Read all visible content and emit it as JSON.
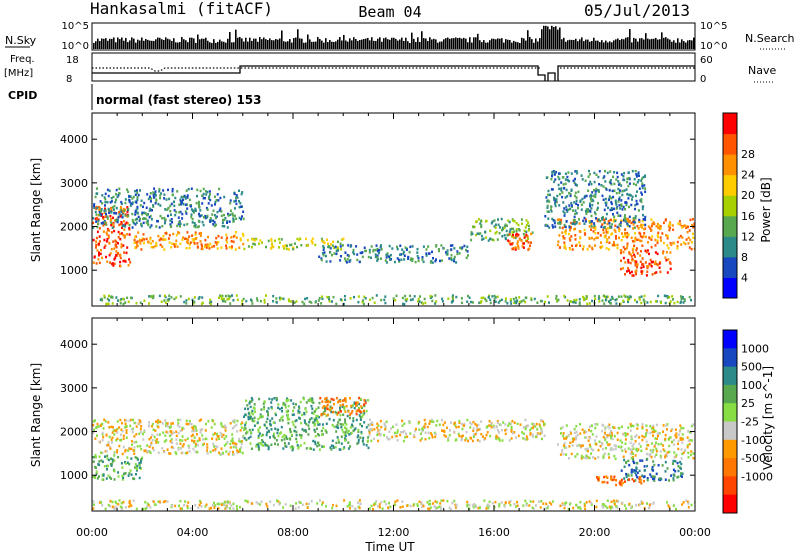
{
  "header": {
    "station": "Hankasalmi (fitACF)",
    "beam": "Beam 04",
    "date": "05/Jul/2013"
  },
  "strip_labels": {
    "nsky": "N.Sky",
    "nsky_ticks": [
      "10^5",
      "10^0"
    ],
    "nsearch": "N.Search",
    "nsearch_ticks": [
      "10^5",
      "10^0"
    ],
    "freq_line1": "Freq.",
    "freq_line2": "[MHz]",
    "freq_ticks": [
      "18",
      "8"
    ],
    "nave": "Nave",
    "nave_ticks": [
      "60",
      "0"
    ],
    "cpid": "CPID",
    "cpid_text": "normal (fast stereo) 153"
  },
  "chart_data": [
    {
      "type": "heatmap",
      "name": "power-panel",
      "xlabel": "Time UT",
      "ylabel": "Slant Range [km]",
      "xlim": [
        0,
        24
      ],
      "ylim": [
        180,
        4600
      ],
      "y_ticks": [
        "1000",
        "2000",
        "3000",
        "4000"
      ],
      "x_ticks": [
        "00:00",
        "04:00",
        "08:00",
        "12:00",
        "16:00",
        "20:00",
        "00:00"
      ],
      "colorbar": {
        "label": "Power [dB]",
        "ticks": [
          "4",
          "8",
          "12",
          "16",
          "20",
          "24",
          "28"
        ],
        "colors": [
          "#0000ff",
          "#1848c0",
          "#2c8a88",
          "#58a850",
          "#a8d000",
          "#ffcc00",
          "#ff9000",
          "#ff5500",
          "#ff0000"
        ]
      },
      "echo_bands": [
        {
          "x": [
            0.3,
            23.9
          ],
          "y": [
            250,
            450
          ],
          "level": 3
        },
        {
          "x": [
            0,
            1.5
          ],
          "y": [
            1100,
            2500
          ],
          "level": 7
        },
        {
          "x": [
            1.5,
            6
          ],
          "y": [
            1500,
            1900
          ],
          "level": 6
        },
        {
          "x": [
            6,
            10
          ],
          "y": [
            1500,
            1750
          ],
          "level": 4
        },
        {
          "x": [
            9,
            15
          ],
          "y": [
            1200,
            1600
          ],
          "level": 2
        },
        {
          "x": [
            15,
            17.5
          ],
          "y": [
            1700,
            2200
          ],
          "level": 3
        },
        {
          "x": [
            16.5,
            17.5
          ],
          "y": [
            1500,
            1900
          ],
          "level": 7
        },
        {
          "x": [
            18.5,
            24
          ],
          "y": [
            1500,
            2200
          ],
          "level": 6
        },
        {
          "x": [
            21,
            23
          ],
          "y": [
            900,
            1500
          ],
          "level": 7
        },
        {
          "x": [
            0,
            6
          ],
          "y": [
            2000,
            2900
          ],
          "level": 2
        },
        {
          "x": [
            18,
            22
          ],
          "y": [
            2000,
            3300
          ],
          "level": 2
        }
      ]
    },
    {
      "type": "heatmap",
      "name": "velocity-panel",
      "xlabel": "Time UT",
      "ylabel": "Slant Range [km]",
      "xlim": [
        0,
        24
      ],
      "ylim": [
        180,
        4600
      ],
      "y_ticks": [
        "1000",
        "2000",
        "3000",
        "4000"
      ],
      "x_ticks": [
        "00:00",
        "04:00",
        "08:00",
        "12:00",
        "16:00",
        "20:00",
        "00:00"
      ],
      "colorbar": {
        "label": "Velocity [m s^-1]",
        "ticks": [
          "1000",
          "500",
          "100",
          "25",
          "-25",
          "-100",
          "-500",
          "-1000"
        ],
        "colors": [
          "#0000ff",
          "#1848c0",
          "#2c8a88",
          "#58a850",
          "#88dd44",
          "#c8c8c8",
          "#ff9900",
          "#ff7700",
          "#ff4400",
          "#ff0000"
        ]
      },
      "echo_bands": [
        {
          "x": [
            0,
            24
          ],
          "y": [
            250,
            450
          ],
          "level": 5
        },
        {
          "x": [
            0,
            6
          ],
          "y": [
            1500,
            2300
          ],
          "level": 5
        },
        {
          "x": [
            6,
            11
          ],
          "y": [
            1600,
            2800
          ],
          "level": 3
        },
        {
          "x": [
            9,
            11
          ],
          "y": [
            2400,
            2800
          ],
          "level": 7
        },
        {
          "x": [
            11,
            18
          ],
          "y": [
            1800,
            2300
          ],
          "level": 5
        },
        {
          "x": [
            18.5,
            24
          ],
          "y": [
            1400,
            2200
          ],
          "level": 5
        },
        {
          "x": [
            21,
            23.5
          ],
          "y": [
            900,
            1400
          ],
          "level": 2
        },
        {
          "x": [
            20,
            22
          ],
          "y": [
            800,
            1000
          ],
          "level": 7
        },
        {
          "x": [
            0,
            2
          ],
          "y": [
            900,
            1500
          ],
          "level": 3
        }
      ]
    }
  ]
}
